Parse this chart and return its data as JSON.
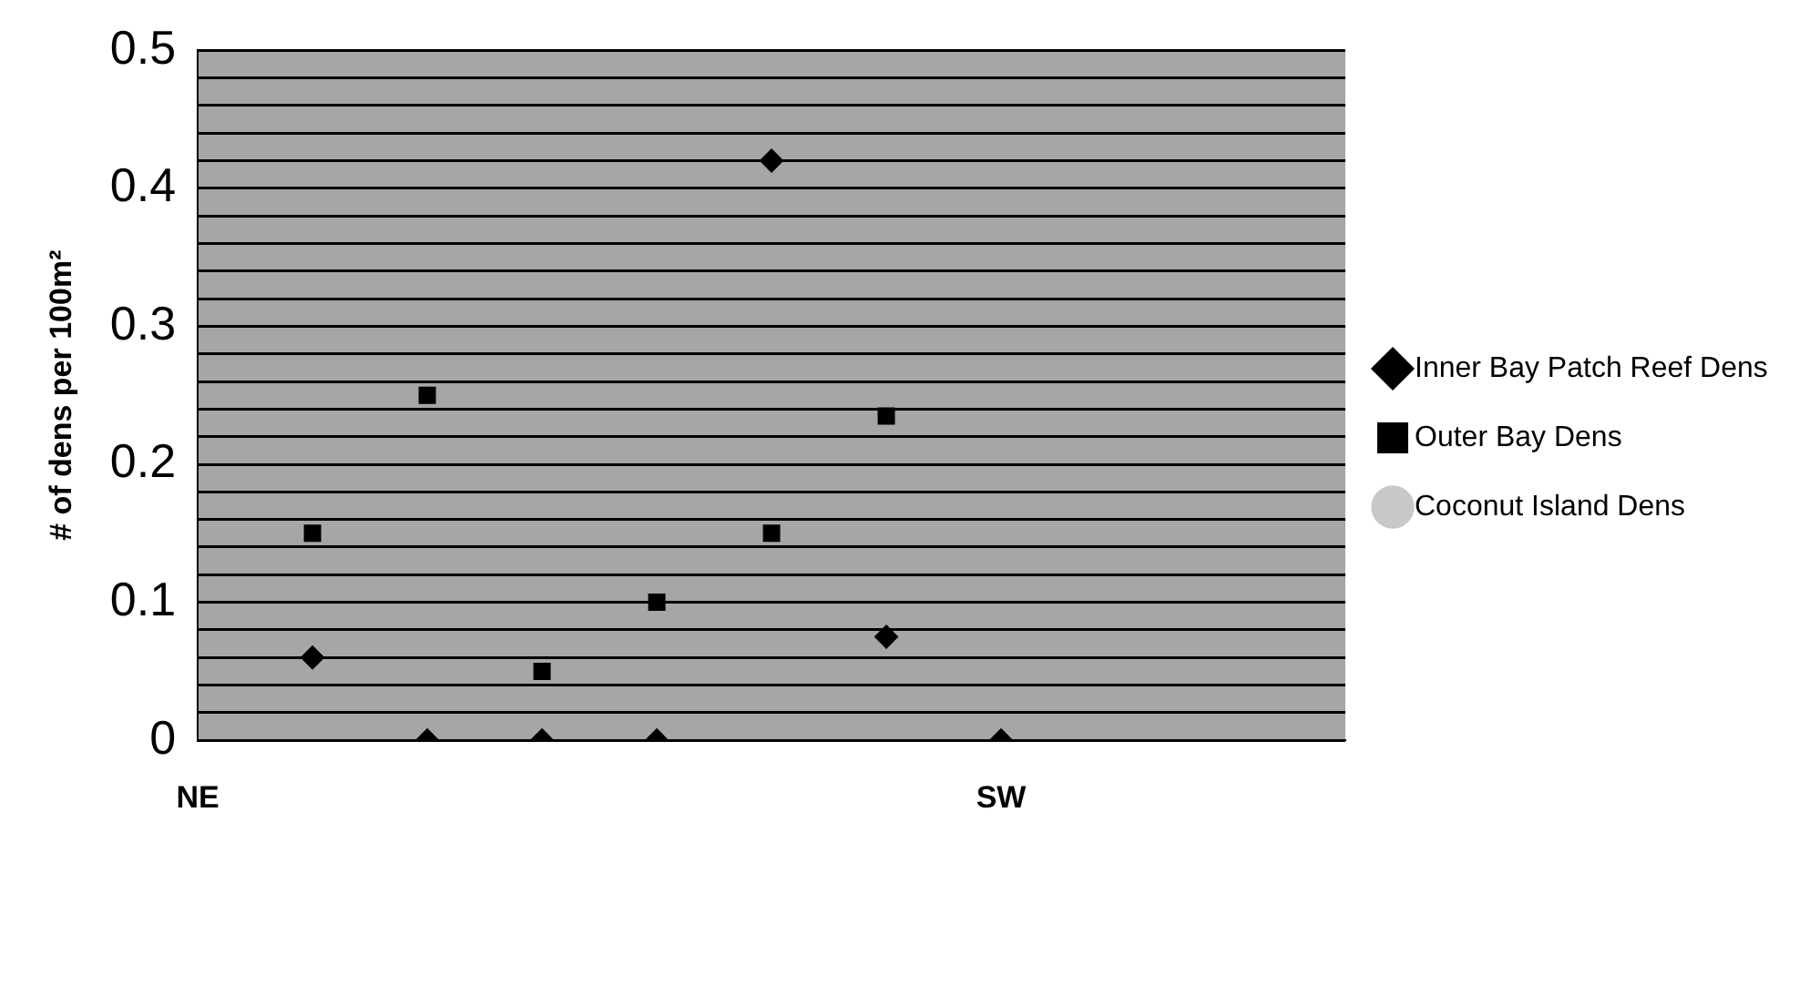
{
  "chart_data": {
    "type": "scatter",
    "ylabel": "# of dens per 100m²",
    "categories": [
      "NE",
      null,
      null,
      null,
      null,
      null,
      null,
      "SW",
      null,
      null,
      null
    ],
    "series": [
      {
        "name": "Inner Bay Patch Reef Dens",
        "color": "#000000",
        "marker": "diamond",
        "values": [
          null,
          0.06,
          0,
          0,
          0,
          0.42,
          0.075,
          0,
          null,
          null,
          null
        ]
      },
      {
        "name": "Outer Bay Dens",
        "color": "#000000",
        "marker": "square",
        "values": [
          null,
          0.15,
          0.25,
          0.05,
          0.1,
          0.15,
          0.235,
          null,
          null,
          null,
          null
        ]
      },
      {
        "name": "Coconut Island Dens",
        "color": "#c8c8c8",
        "marker": "circle",
        "values": [
          null,
          null,
          null,
          null,
          null,
          null,
          null,
          null,
          null,
          null,
          null
        ]
      }
    ],
    "ylim": [
      0,
      0.5
    ],
    "yticks": [
      0,
      {
        "value": 0.02,
        "label": null
      },
      {
        "value": 0.04,
        "label": null
      },
      {
        "value": 0.06,
        "label": null
      },
      {
        "value": 0.08,
        "label": null
      },
      0.1,
      {
        "value": 0.12,
        "label": null
      },
      {
        "value": 0.14,
        "label": null
      },
      {
        "value": 0.16,
        "label": null
      },
      {
        "value": 0.18,
        "label": null
      },
      0.2,
      {
        "value": 0.22,
        "label": null
      },
      {
        "value": 0.24,
        "label": null
      },
      {
        "value": 0.26,
        "label": null
      },
      {
        "value": 0.28,
        "label": null
      },
      0.3,
      {
        "value": 0.32,
        "label": null
      },
      {
        "value": 0.34,
        "label": null
      },
      {
        "value": 0.36,
        "label": null
      },
      {
        "value": 0.38,
        "label": null
      },
      0.4,
      {
        "value": 0.42,
        "label": null
      },
      {
        "value": 0.44,
        "label": null
      },
      {
        "value": 0.46,
        "label": null
      },
      {
        "value": 0.48,
        "label": null
      },
      0.5
    ],
    "grid": "y",
    "legend": "right"
  }
}
